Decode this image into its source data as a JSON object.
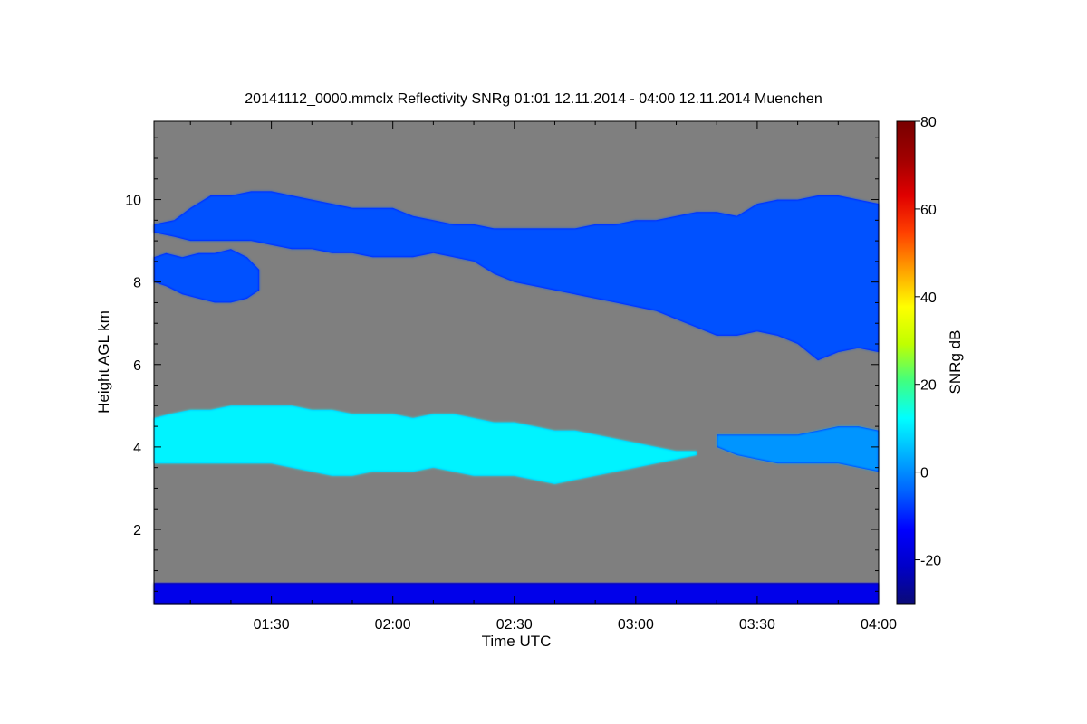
{
  "chart_data": {
    "type": "heatmap",
    "title": "20141112_0000.mmclx Reflectivity SNRg   01:01 12.11.2014 - 04:00 12.11.2014 Muenchen",
    "xlabel": "Time UTC",
    "ylabel": "Height AGL km",
    "x_unit": "minutes of day UTC",
    "xlim": [
      61,
      240
    ],
    "ylim": [
      0.2,
      11.9
    ],
    "x_ticks": [
      {
        "value": 90,
        "label": "01:30"
      },
      {
        "value": 120,
        "label": "02:00"
      },
      {
        "value": 150,
        "label": "02:30"
      },
      {
        "value": 180,
        "label": "03:00"
      },
      {
        "value": 210,
        "label": "03:30"
      },
      {
        "value": 240,
        "label": "04:00"
      }
    ],
    "y_ticks": [
      {
        "value": 2,
        "label": "2"
      },
      {
        "value": 4,
        "label": "4"
      },
      {
        "value": 6,
        "label": "6"
      },
      {
        "value": 8,
        "label": "8"
      },
      {
        "value": 10,
        "label": "10"
      }
    ],
    "background_color": "#7f7f7f",
    "colorbar": {
      "label": "SNRg dB",
      "range": [
        -30,
        80
      ],
      "ticks": [
        {
          "value": -20,
          "label": "-20"
        },
        {
          "value": 0,
          "label": "0"
        },
        {
          "value": 20,
          "label": "20"
        },
        {
          "value": 40,
          "label": "40"
        },
        {
          "value": 60,
          "label": "60"
        },
        {
          "value": 80,
          "label": "80"
        }
      ],
      "colormap": [
        "#0a0a78",
        "#0000c8",
        "#0000ff",
        "#0060ff",
        "#00b0ff",
        "#00ffff",
        "#40ff80",
        "#c0ff00",
        "#ffff00",
        "#ffa000",
        "#ff4000",
        "#e00000",
        "#a00000",
        "#780000"
      ]
    },
    "layers": [
      {
        "name_hint": "upper cloud 01:01-01:27",
        "time": [
          61,
          64,
          68,
          72,
          76,
          80,
          84,
          87
        ],
        "top": [
          8.6,
          8.7,
          8.6,
          8.7,
          8.7,
          8.8,
          8.6,
          8.3
        ],
        "base": [
          8.0,
          7.9,
          7.7,
          7.6,
          7.5,
          7.5,
          7.6,
          7.8
        ],
        "snr": -5
      },
      {
        "name_hint": "upper cloud 01:01-04:00",
        "time": [
          61,
          66,
          70,
          75,
          80,
          85,
          90,
          95,
          100,
          105,
          110,
          115,
          120,
          125,
          130,
          135,
          140,
          145,
          150,
          155,
          160,
          165,
          170,
          175,
          180,
          185,
          190,
          195,
          200,
          205,
          210,
          215,
          220,
          225,
          230,
          235,
          240
        ],
        "top": [
          9.4,
          9.5,
          9.8,
          10.1,
          10.1,
          10.2,
          10.2,
          10.1,
          10.0,
          9.9,
          9.8,
          9.8,
          9.8,
          9.6,
          9.5,
          9.4,
          9.4,
          9.3,
          9.3,
          9.3,
          9.3,
          9.3,
          9.4,
          9.4,
          9.5,
          9.5,
          9.6,
          9.7,
          9.7,
          9.6,
          9.9,
          10.0,
          10.0,
          10.1,
          10.1,
          10.0,
          9.9
        ],
        "base": [
          9.2,
          9.1,
          9.0,
          9.0,
          9.0,
          9.0,
          8.9,
          8.8,
          8.8,
          8.7,
          8.7,
          8.6,
          8.6,
          8.6,
          8.7,
          8.6,
          8.5,
          8.2,
          8.0,
          7.9,
          7.8,
          7.7,
          7.6,
          7.5,
          7.4,
          7.3,
          7.1,
          6.9,
          6.7,
          6.7,
          6.8,
          6.7,
          6.5,
          6.1,
          6.3,
          6.4,
          6.3
        ],
        "snr": -5
      },
      {
        "name_hint": "mid cloud 01:01-03:15",
        "time": [
          61,
          65,
          70,
          75,
          80,
          85,
          90,
          95,
          100,
          105,
          110,
          115,
          120,
          125,
          130,
          135,
          140,
          145,
          150,
          155,
          160,
          165,
          170,
          175,
          180,
          185,
          190,
          195
        ],
        "top": [
          4.7,
          4.8,
          4.9,
          4.9,
          5.0,
          5.0,
          5.0,
          5.0,
          4.9,
          4.9,
          4.8,
          4.8,
          4.8,
          4.7,
          4.8,
          4.8,
          4.7,
          4.6,
          4.6,
          4.5,
          4.4,
          4.4,
          4.3,
          4.2,
          4.1,
          4.0,
          3.9,
          3.9
        ],
        "base": [
          3.6,
          3.6,
          3.6,
          3.6,
          3.6,
          3.6,
          3.6,
          3.5,
          3.4,
          3.3,
          3.3,
          3.4,
          3.4,
          3.4,
          3.5,
          3.4,
          3.3,
          3.3,
          3.3,
          3.2,
          3.1,
          3.2,
          3.3,
          3.4,
          3.5,
          3.6,
          3.7,
          3.8
        ],
        "snr": 15
      },
      {
        "name_hint": "mid cloud 03:20-04:00",
        "time": [
          200,
          205,
          210,
          215,
          220,
          225,
          230,
          235,
          240
        ],
        "top": [
          4.3,
          4.3,
          4.3,
          4.3,
          4.3,
          4.4,
          4.5,
          4.5,
          4.4
        ],
        "base": [
          4.0,
          3.8,
          3.7,
          3.6,
          3.6,
          3.6,
          3.6,
          3.5,
          3.4
        ],
        "snr": 2
      },
      {
        "name_hint": "near-surface clutter",
        "time": [
          61,
          240
        ],
        "top": [
          0.7,
          0.7
        ],
        "base": [
          0.2,
          0.2
        ],
        "snr": -15
      }
    ]
  }
}
